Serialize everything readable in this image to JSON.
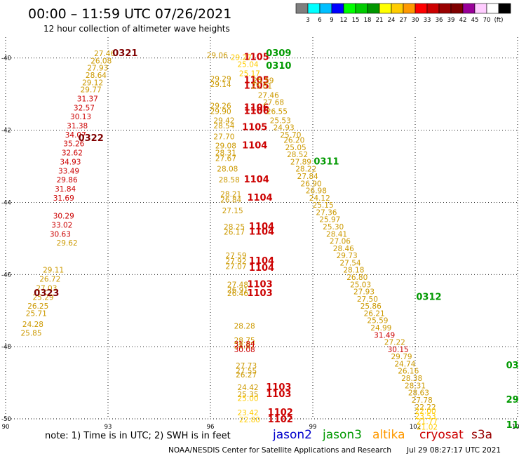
{
  "header": {
    "title": "00:00 – 11:59 UTC 07/26/2021",
    "subtitle": "12 hour collection of altimeter wave heights"
  },
  "colorbar": {
    "colors": [
      "#7f7f7f",
      "#00ffff",
      "#00bfff",
      "#0000ff",
      "#00ff00",
      "#00cc00",
      "#009600",
      "#ffff00",
      "#ffcc00",
      "#ff9900",
      "#ff0000",
      "#cc0000",
      "#990000",
      "#7f0000",
      "#990099",
      "#ffccff",
      "#ffffff",
      "#000000"
    ],
    "labels": [
      "3",
      "6",
      "9",
      "12",
      "15",
      "18",
      "21",
      "24",
      "27",
      "30",
      "33",
      "36",
      "39",
      "42",
      "45",
      "70",
      "(ft)"
    ]
  },
  "footer": {
    "note": "note: 1) Time is in UTC; 2) SWH is in feet",
    "credit": "NOAA/NESDIS Center for Satellite Applications and Research",
    "timestamp": "Jul 29 08:27:17 UTC 2021",
    "satellites": [
      {
        "name": "jason2",
        "color": "#0000cc"
      },
      {
        "name": "jason3",
        "color": "#009900"
      },
      {
        "name": "altika",
        "color": "#ff9900"
      },
      {
        "name": "cryosat",
        "color": "#cc0000"
      },
      {
        "name": "s3a",
        "color": "#990000"
      }
    ]
  },
  "chart_data": {
    "type": "scatter",
    "xlim": [
      90,
      105
    ],
    "ylim": [
      -50,
      -39.5
    ],
    "x_ticks": [
      "90",
      "93",
      "96",
      "99",
      "102",
      "105"
    ],
    "y_ticks": [
      "-40",
      "-42",
      "-44",
      "-46",
      "-48",
      "-50"
    ],
    "grid": true,
    "series": [
      {
        "color": "#cc9900",
        "points": [
          {
            "x": 92.9,
            "y": -39.95,
            "label": "27.46"
          },
          {
            "x": 92.8,
            "y": -40.15,
            "label": "26.08"
          },
          {
            "x": 92.7,
            "y": -40.35,
            "label": "27.93"
          },
          {
            "x": 92.65,
            "y": -40.55,
            "label": "28.64"
          },
          {
            "x": 92.55,
            "y": -40.75,
            "label": "29.12"
          },
          {
            "x": 92.5,
            "y": -40.95,
            "label": "29.77"
          },
          {
            "x": 91.8,
            "y": -45.2,
            "label": "29.62"
          },
          {
            "x": 91.4,
            "y": -45.95,
            "label": "29.11"
          },
          {
            "x": 91.3,
            "y": -46.2,
            "label": "26.72"
          },
          {
            "x": 91.2,
            "y": -46.45,
            "label": "27.03"
          },
          {
            "x": 91.1,
            "y": -46.7,
            "label": "25.29"
          },
          {
            "x": 90.95,
            "y": -46.95,
            "label": "26.25"
          },
          {
            "x": 90.9,
            "y": -47.15,
            "label": "25.71"
          },
          {
            "x": 90.8,
            "y": -47.45,
            "label": "24.28"
          },
          {
            "x": 90.75,
            "y": -47.7,
            "label": "25.85"
          }
        ]
      },
      {
        "color": "#cc0000",
        "points": [
          {
            "x": 92.4,
            "y": -41.2,
            "label": "31.37"
          },
          {
            "x": 92.3,
            "y": -41.45,
            "label": "32.57"
          },
          {
            "x": 92.2,
            "y": -41.7,
            "label": "30.13"
          },
          {
            "x": 92.1,
            "y": -41.95,
            "label": "31.38"
          },
          {
            "x": 92.05,
            "y": -42.2,
            "label": "34.07"
          },
          {
            "x": 92.0,
            "y": -42.45,
            "label": "35.26"
          },
          {
            "x": 91.95,
            "y": -42.7,
            "label": "32.62"
          },
          {
            "x": 91.9,
            "y": -42.95,
            "label": "34.93"
          },
          {
            "x": 91.85,
            "y": -43.2,
            "label": "33.49"
          },
          {
            "x": 91.8,
            "y": -43.45,
            "label": "29.86"
          },
          {
            "x": 91.75,
            "y": -43.7,
            "label": "31.84"
          },
          {
            "x": 91.7,
            "y": -43.95,
            "label": "31.69"
          },
          {
            "x": 91.7,
            "y": -44.45,
            "label": "30.29"
          },
          {
            "x": 91.65,
            "y": -44.7,
            "label": "33.02"
          },
          {
            "x": 91.6,
            "y": -44.95,
            "label": "30.63"
          }
        ]
      },
      {
        "color": "#7f0000",
        "points": [
          {
            "x": 93.5,
            "y": -39.95,
            "label": "0321"
          },
          {
            "x": 92.5,
            "y": -42.3,
            "label": "0322"
          },
          {
            "x": 91.2,
            "y": -46.6,
            "label": "0323"
          }
        ]
      },
      {
        "color": "#cc9900",
        "points": [
          {
            "x": 96.2,
            "y": -40.0,
            "label": "29.06"
          },
          {
            "x": 96.3,
            "y": -40.65,
            "label": "29.29"
          },
          {
            "x": 96.3,
            "y": -40.8,
            "label": "29.14"
          },
          {
            "x": 96.3,
            "y": -41.4,
            "label": "29.26"
          },
          {
            "x": 96.3,
            "y": -41.55,
            "label": "29.90"
          },
          {
            "x": 96.4,
            "y": -41.8,
            "label": "29.42"
          },
          {
            "x": 96.4,
            "y": -41.95,
            "label": "28.54"
          },
          {
            "x": 96.4,
            "y": -42.25,
            "label": "27.70"
          },
          {
            "x": 96.45,
            "y": -42.5,
            "label": "29.08"
          },
          {
            "x": 96.45,
            "y": -42.7,
            "label": "28.31"
          },
          {
            "x": 96.45,
            "y": -42.85,
            "label": "27.67"
          },
          {
            "x": 96.5,
            "y": -43.15,
            "label": "28.08"
          },
          {
            "x": 96.55,
            "y": -43.45,
            "label": "28.58"
          },
          {
            "x": 96.6,
            "y": -43.85,
            "label": "28.21"
          },
          {
            "x": 96.6,
            "y": -44.0,
            "label": "26.84"
          },
          {
            "x": 96.65,
            "y": -44.3,
            "label": "27.15"
          },
          {
            "x": 96.7,
            "y": -44.75,
            "label": "28.25"
          },
          {
            "x": 96.7,
            "y": -44.9,
            "label": "26.17"
          },
          {
            "x": 96.75,
            "y": -45.55,
            "label": "27.59"
          },
          {
            "x": 96.75,
            "y": -45.7,
            "label": "27.92"
          },
          {
            "x": 96.75,
            "y": -45.85,
            "label": "27.07"
          },
          {
            "x": 96.8,
            "y": -46.35,
            "label": "27.48"
          },
          {
            "x": 96.8,
            "y": -46.5,
            "label": "26.91"
          },
          {
            "x": 96.8,
            "y": -46.6,
            "label": "26.46"
          },
          {
            "x": 97.0,
            "y": -47.5,
            "label": "28.28"
          },
          {
            "x": 97.0,
            "y": -47.9,
            "label": "28.75"
          },
          {
            "x": 97.0,
            "y": -48.05,
            "label": "28.87"
          },
          {
            "x": 97.05,
            "y": -48.6,
            "label": "27.73"
          },
          {
            "x": 97.05,
            "y": -48.75,
            "label": "27.55"
          },
          {
            "x": 97.05,
            "y": -48.85,
            "label": "26.27"
          },
          {
            "x": 97.1,
            "y": -49.2,
            "label": "24.42"
          },
          {
            "x": 97.1,
            "y": -49.4,
            "label": "25.35"
          }
        ]
      },
      {
        "color": "#cc0000",
        "points": [
          {
            "x": 97.35,
            "y": -40.05,
            "label": "1105"
          },
          {
            "x": 97.35,
            "y": -40.7,
            "label": "1105"
          },
          {
            "x": 97.35,
            "y": -40.85,
            "label": "1105"
          },
          {
            "x": 97.35,
            "y": -41.45,
            "label": "1106"
          },
          {
            "x": 97.35,
            "y": -41.55,
            "label": "1106"
          },
          {
            "x": 97.3,
            "y": -42.0,
            "label": "1105"
          },
          {
            "x": 97.3,
            "y": -42.5,
            "label": "1104"
          },
          {
            "x": 97.35,
            "y": -43.45,
            "label": "1104"
          },
          {
            "x": 97.45,
            "y": -43.95,
            "label": "1104"
          },
          {
            "x": 97.5,
            "y": -44.75,
            "label": "1104"
          },
          {
            "x": 97.5,
            "y": -44.9,
            "label": "1104"
          },
          {
            "x": 97.5,
            "y": -45.7,
            "label": "1104"
          },
          {
            "x": 97.5,
            "y": -45.9,
            "label": "1104"
          },
          {
            "x": 97.45,
            "y": -46.35,
            "label": "1103"
          },
          {
            "x": 97.45,
            "y": -46.6,
            "label": "1103"
          },
          {
            "x": 97.0,
            "y": -48.0,
            "label": "31.84"
          },
          {
            "x": 97.0,
            "y": -48.15,
            "label": "30.08"
          },
          {
            "x": 98.0,
            "y": -49.2,
            "label": "1103"
          },
          {
            "x": 98.0,
            "y": -49.4,
            "label": "1103"
          },
          {
            "x": 98.05,
            "y": -49.9,
            "label": "1102"
          },
          {
            "x": 98.05,
            "y": -50.1,
            "label": "1102"
          }
        ]
      },
      {
        "color": "#ffcc00",
        "points": [
          {
            "x": 96.9,
            "y": -40.05,
            "label": "29.27"
          },
          {
            "x": 97.1,
            "y": -40.25,
            "label": "25.04"
          },
          {
            "x": 97.15,
            "y": -40.5,
            "label": "25.17"
          },
          {
            "x": 97.1,
            "y": -49.5,
            "label": "25.00"
          },
          {
            "x": 97.1,
            "y": -49.9,
            "label": "23.42"
          },
          {
            "x": 97.15,
            "y": -50.1,
            "label": "22.80"
          }
        ]
      },
      {
        "color": "#cc9900",
        "points": [
          {
            "x": 97.55,
            "y": -40.7,
            "label": "25.59"
          },
          {
            "x": 97.5,
            "y": -40.85,
            "label": "25.01"
          },
          {
            "x": 97.7,
            "y": -41.1,
            "label": "27.46"
          },
          {
            "x": 97.85,
            "y": -41.3,
            "label": "27.68"
          },
          {
            "x": 97.95,
            "y": -41.55,
            "label": "26.55"
          },
          {
            "x": 98.05,
            "y": -41.8,
            "label": "25.53"
          },
          {
            "x": 98.15,
            "y": -42.0,
            "label": "24.93"
          },
          {
            "x": 98.35,
            "y": -42.2,
            "label": "25.70"
          },
          {
            "x": 98.45,
            "y": -42.35,
            "label": "26.20"
          },
          {
            "x": 98.5,
            "y": -42.55,
            "label": "25.05"
          },
          {
            "x": 98.55,
            "y": -42.75,
            "label": "28.52"
          },
          {
            "x": 98.65,
            "y": -42.95,
            "label": "27.89"
          },
          {
            "x": 98.8,
            "y": -43.15,
            "label": "28.22"
          },
          {
            "x": 98.85,
            "y": -43.35,
            "label": "27.84"
          },
          {
            "x": 98.95,
            "y": -43.55,
            "label": "26.90"
          },
          {
            "x": 99.1,
            "y": -43.75,
            "label": "26.98"
          },
          {
            "x": 99.2,
            "y": -43.95,
            "label": "24.12"
          },
          {
            "x": 99.3,
            "y": -44.15,
            "label": "25.15"
          },
          {
            "x": 99.4,
            "y": -44.35,
            "label": "27.36"
          },
          {
            "x": 99.5,
            "y": -44.55,
            "label": "25.97"
          },
          {
            "x": 99.6,
            "y": -44.75,
            "label": "25.30"
          },
          {
            "x": 99.7,
            "y": -44.95,
            "label": "28.41"
          },
          {
            "x": 99.8,
            "y": -45.15,
            "label": "27.06"
          },
          {
            "x": 99.9,
            "y": -45.35,
            "label": "28.46"
          },
          {
            "x": 100.0,
            "y": -45.55,
            "label": "29.73"
          },
          {
            "x": 100.1,
            "y": -45.75,
            "label": "27.54"
          },
          {
            "x": 100.2,
            "y": -45.95,
            "label": "28.18"
          },
          {
            "x": 100.3,
            "y": -46.15,
            "label": "26.80"
          },
          {
            "x": 100.4,
            "y": -46.35,
            "label": "25.03"
          },
          {
            "x": 100.5,
            "y": -46.55,
            "label": "27.93"
          },
          {
            "x": 100.6,
            "y": -46.75,
            "label": "27.50"
          },
          {
            "x": 100.7,
            "y": -46.95,
            "label": "25.86"
          },
          {
            "x": 100.8,
            "y": -47.15,
            "label": "26.21"
          },
          {
            "x": 100.9,
            "y": -47.35,
            "label": "25.59"
          },
          {
            "x": 101.0,
            "y": -47.55,
            "label": "24.99"
          },
          {
            "x": 101.4,
            "y": -47.95,
            "label": "27.22"
          },
          {
            "x": 101.6,
            "y": -48.35,
            "label": "29.79"
          },
          {
            "x": 101.7,
            "y": -48.55,
            "label": "24.74"
          },
          {
            "x": 101.8,
            "y": -48.75,
            "label": "26.16"
          },
          {
            "x": 101.9,
            "y": -48.95,
            "label": "28.38"
          },
          {
            "x": 102.0,
            "y": -49.15,
            "label": "28.31"
          },
          {
            "x": 102.1,
            "y": -49.35,
            "label": "28.63"
          },
          {
            "x": 102.2,
            "y": -49.55,
            "label": "27.78"
          },
          {
            "x": 102.3,
            "y": -49.75,
            "label": "22.22"
          }
        ]
      },
      {
        "color": "#cc0000",
        "points": [
          {
            "x": 101.1,
            "y": -47.75,
            "label": "31.49"
          },
          {
            "x": 101.5,
            "y": -48.15,
            "label": "30.15"
          }
        ]
      },
      {
        "color": "#ffcc00",
        "points": [
          {
            "x": 102.3,
            "y": -49.85,
            "label": "22.00"
          },
          {
            "x": 102.3,
            "y": -50.0,
            "label": "23.53"
          },
          {
            "x": 102.35,
            "y": -50.15,
            "label": "21.77"
          },
          {
            "x": 102.35,
            "y": -50.3,
            "label": "21.02"
          }
        ]
      },
      {
        "color": "#009900",
        "points": [
          {
            "x": 98.0,
            "y": -39.95,
            "label": "0309"
          },
          {
            "x": 98.0,
            "y": -40.3,
            "label": "0310"
          },
          {
            "x": 99.4,
            "y": -42.95,
            "label": "0311"
          },
          {
            "x": 102.4,
            "y": -46.7,
            "label": "0312"
          },
          {
            "x": 104.85,
            "y": -48.6,
            "label": "03"
          },
          {
            "x": 104.85,
            "y": -49.55,
            "label": "29"
          },
          {
            "x": 104.85,
            "y": -50.25,
            "label": "11"
          }
        ]
      }
    ]
  }
}
